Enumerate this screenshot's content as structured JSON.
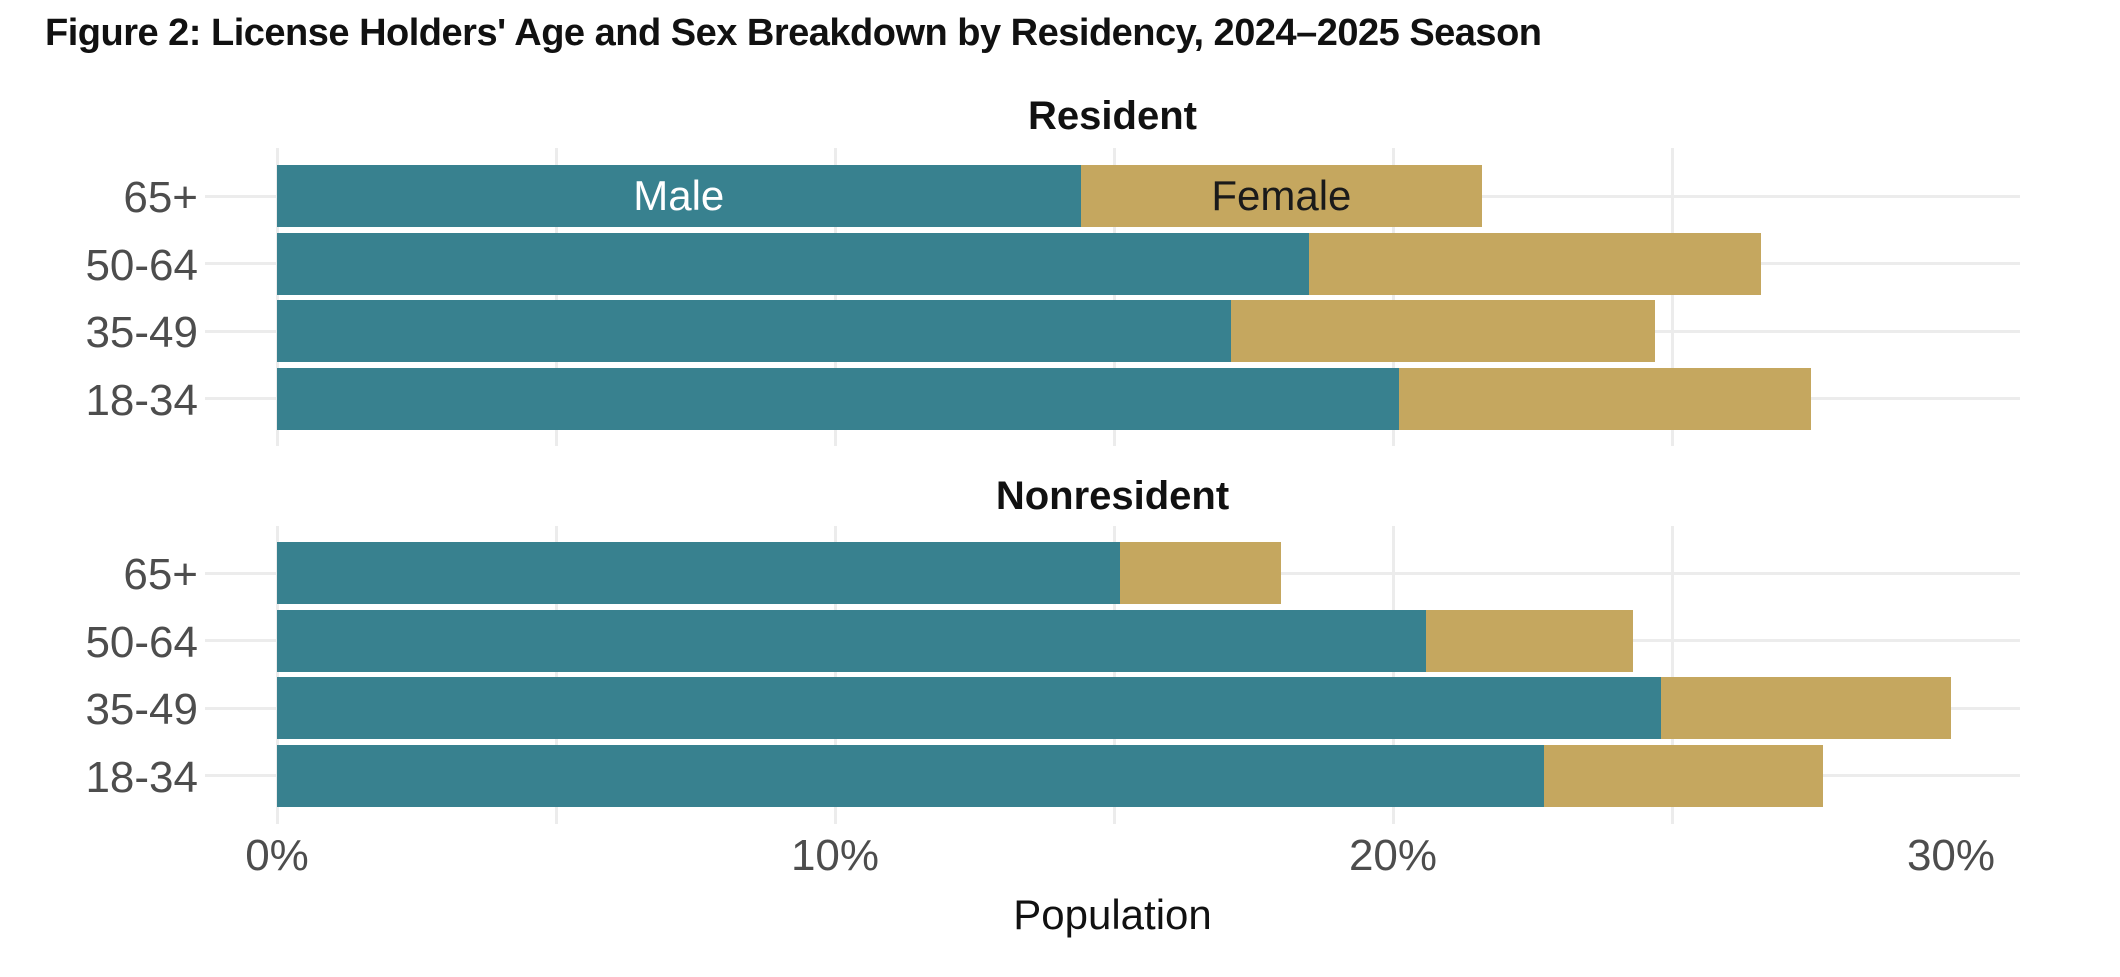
{
  "title": "Figure 2: License Holders' Age and Sex Breakdown by Residency, 2024–2025 Season",
  "colors": {
    "male": "#38818F",
    "female": "#C5A75F",
    "gridline": "#ECECEC",
    "tick_label": "#4D4D4D",
    "text": "#111111",
    "male_inbar_label": "#FFFFFF",
    "female_inbar_label": "#1A1A1A",
    "background": "#FFFFFF"
  },
  "chart_data": {
    "type": "bar",
    "orientation": "horizontal",
    "stacked": true,
    "unit": "%",
    "xlabel": "Population",
    "x_ticks": [
      "0%",
      "10%",
      "20%",
      "30%"
    ],
    "x_tick_values": [
      0,
      10,
      20,
      30
    ],
    "xlim": [
      0,
      31.2
    ],
    "grid_step_percent": 5,
    "grid": "on",
    "facets": [
      {
        "title": "Resident",
        "categories": [
          "65+",
          "50-64",
          "35-49",
          "18-34"
        ],
        "series": [
          {
            "name": "Male",
            "values": [
              14.4,
              18.5,
              17.1,
              20.1
            ]
          },
          {
            "name": "Female",
            "values": [
              7.2,
              8.1,
              7.6,
              7.4
            ]
          }
        ],
        "totals": [
          21.6,
          26.6,
          24.7,
          27.5
        ]
      },
      {
        "title": "Nonresident",
        "categories": [
          "65+",
          "50-64",
          "35-49",
          "18-34"
        ],
        "series": [
          {
            "name": "Male",
            "values": [
              15.1,
              20.6,
              24.8,
              22.7
            ]
          },
          {
            "name": "Female",
            "values": [
              2.9,
              3.7,
              5.2,
              5.0
            ]
          }
        ],
        "totals": [
          18.0,
          24.3,
          30.0,
          27.7
        ]
      }
    ],
    "legend": {
      "labels": [
        "Male",
        "Female"
      ],
      "position": "inside-first-row-of-first-facet"
    }
  }
}
